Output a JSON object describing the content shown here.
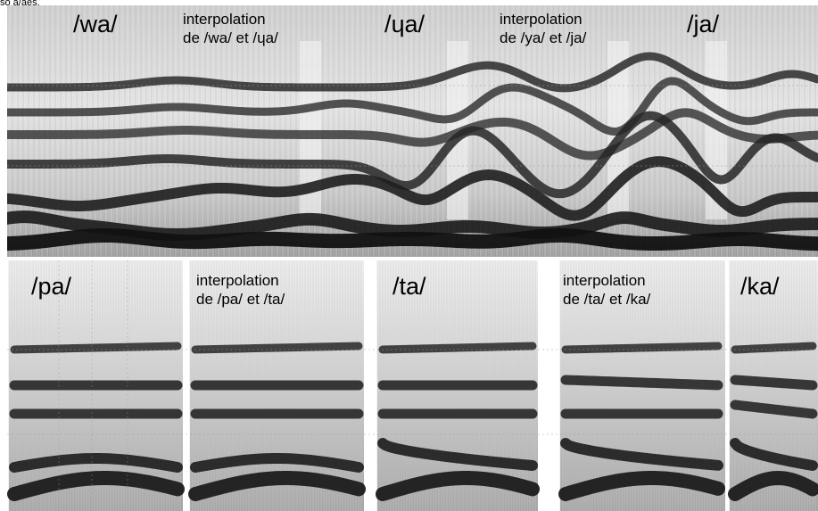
{
  "header_fragment": "so a/aes.",
  "top_panel": {
    "labels": [
      {
        "id": "wa",
        "lines": [
          "/wa/"
        ],
        "size": "big"
      },
      {
        "id": "interp-wa-ua",
        "lines": [
          "interpolation",
          "de /wa/ et /ɥa/"
        ],
        "size": "small"
      },
      {
        "id": "ua",
        "lines": [
          "/ɥa/"
        ],
        "size": "big"
      },
      {
        "id": "interp-ya-ja",
        "lines": [
          "interpolation",
          "de /ya/ et /ja/"
        ],
        "size": "small"
      },
      {
        "id": "ja",
        "lines": [
          "/ja/"
        ],
        "size": "big"
      }
    ]
  },
  "bottom_panel": {
    "labels": [
      {
        "id": "pa",
        "lines": [
          "/pa/"
        ],
        "size": "big"
      },
      {
        "id": "interp-pa-ta",
        "lines": [
          "interpolation",
          "de /pa/ et /ta/"
        ],
        "size": "small"
      },
      {
        "id": "ta",
        "lines": [
          "/ta/"
        ],
        "size": "big"
      },
      {
        "id": "interp-ta-ka",
        "lines": [
          "interpolation",
          "de /ta/ et /ka/"
        ],
        "size": "small"
      },
      {
        "id": "ka",
        "lines": [
          "/ka/"
        ],
        "size": "big"
      }
    ]
  },
  "colors": {
    "background": "#ffffff",
    "formant_dark": "#1a1a1a",
    "spectro_light": "#d8d8d8",
    "grid": "#9a9a9a"
  }
}
